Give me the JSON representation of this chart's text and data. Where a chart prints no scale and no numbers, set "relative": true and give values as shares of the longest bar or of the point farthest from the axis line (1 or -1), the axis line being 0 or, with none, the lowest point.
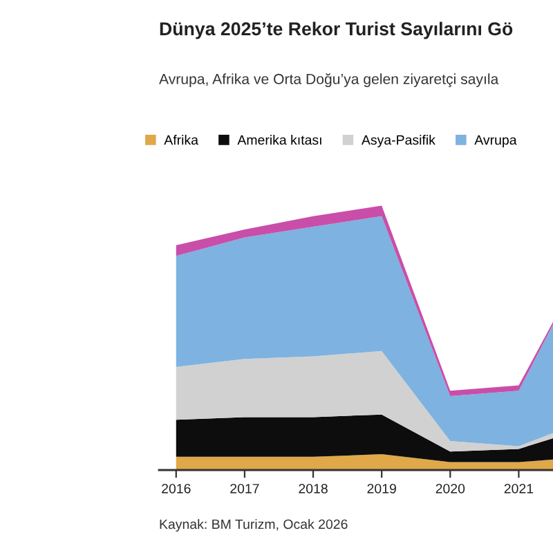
{
  "chart_data": {
    "type": "area",
    "stacked": true,
    "relative": true,
    "title": "Dünya 2025’te Rekor Turist Sayılarını Gö",
    "subtitle": "Avrupa, Afrika ve Orta Doğu’ya gelen ziyaretçi sayıla",
    "annotations": [
      "Kaynak: BM Turizm, Ocak 2026"
    ],
    "x": [
      2016,
      2017,
      2018,
      2019,
      2020,
      2021,
      2021.5
    ],
    "xlim": [
      2015.75,
      2021.5
    ],
    "xticks": [
      2016,
      2017,
      2018,
      2019,
      2020,
      2021
    ],
    "tick_labels": "x",
    "legend": "top",
    "series": [
      {
        "name": "Afrika",
        "color": "#e0a849",
        "values": [
          0.05,
          0.05,
          0.05,
          0.06,
          0.03,
          0.03,
          0.04
        ]
      },
      {
        "name": "Amerika kıtası",
        "color": "#0d0d0d",
        "values": [
          0.14,
          0.15,
          0.15,
          0.15,
          0.04,
          0.05,
          0.08
        ]
      },
      {
        "name": "Asya-Pasifik",
        "color": "#d1d1d1",
        "values": [
          0.2,
          0.22,
          0.23,
          0.24,
          0.04,
          0.01,
          0.02
        ]
      },
      {
        "name": "Avrupa",
        "color": "#7eb2e0",
        "values": [
          0.42,
          0.46,
          0.49,
          0.51,
          0.17,
          0.21,
          0.41
        ]
      },
      {
        "color": "#c94ea9",
        "values": [
          0.04,
          0.03,
          0.04,
          0.04,
          0.02,
          0.02,
          0.01
        ]
      }
    ]
  }
}
